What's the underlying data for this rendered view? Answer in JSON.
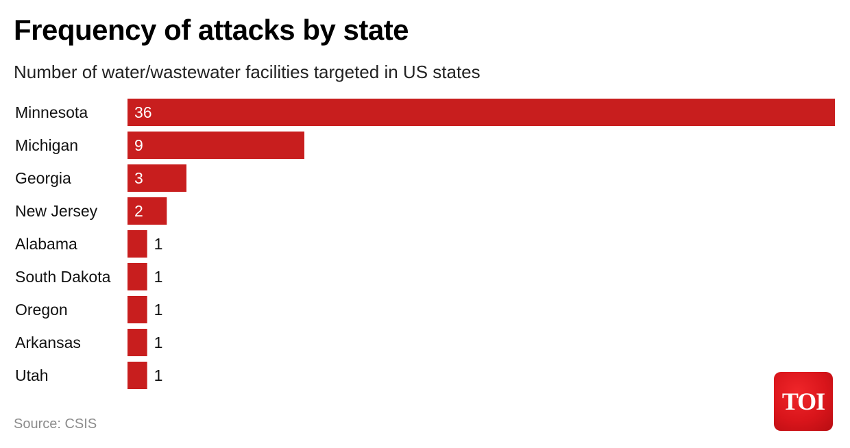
{
  "chart_data": {
    "type": "bar",
    "orientation": "horizontal",
    "title": "Frequency of attacks by state",
    "subtitle": "Number of water/wastewater facilities targeted in US states",
    "categories": [
      "Minnesota",
      "Michigan",
      "Georgia",
      "New Jersey",
      "Alabama",
      "South Dakota",
      "Oregon",
      "Arkansas",
      "Utah"
    ],
    "values": [
      36,
      9,
      3,
      2,
      1,
      1,
      1,
      1,
      1
    ],
    "xlim": [
      0,
      36
    ],
    "bar_color": "#c81e1e",
    "grid": false,
    "legend": "none"
  },
  "source": "Source: CSIS",
  "logo": {
    "text": "TOI",
    "color": "#e31b23"
  }
}
